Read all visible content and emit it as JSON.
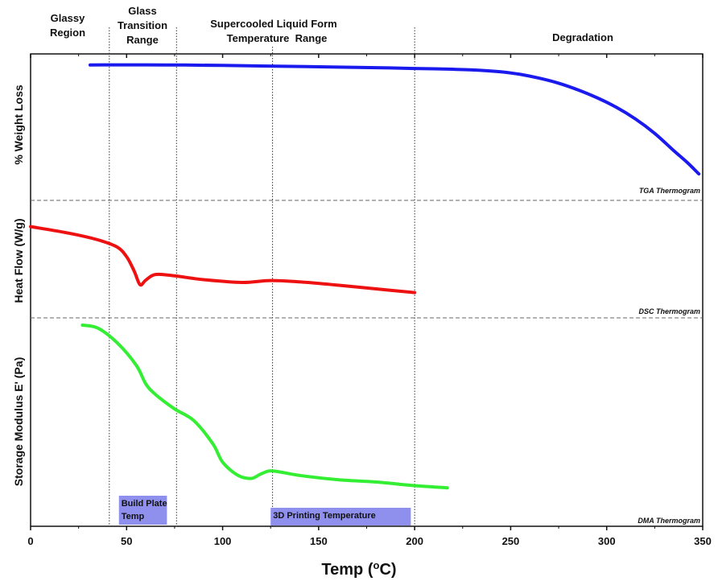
{
  "chart_data": {
    "type": "line",
    "x_axis": {
      "label_main": "Temp (",
      "label_sup": "o",
      "label_end": "C)",
      "range": [
        0,
        350
      ],
      "ticks": [
        "0",
        "50",
        "100",
        "150",
        "200",
        "250",
        "300",
        "350"
      ],
      "tick_values": [
        0,
        50,
        100,
        150,
        200,
        250,
        300,
        350
      ]
    },
    "regions": [
      {
        "lines": [
          "Glassy",
          "Region"
        ]
      },
      {
        "lines": [
          "Glass",
          "Transition",
          "Range"
        ]
      },
      {
        "lines": [
          "Supercooled Liquid Form",
          "Temperature  Range"
        ]
      },
      {
        "lines": [
          "Degradation"
        ]
      }
    ],
    "region_boundaries": [
      41,
      76,
      200
    ],
    "extra_divider": 126,
    "panels": [
      {
        "ylabel": "% Weight Loss",
        "caption": "TGA Thermogram",
        "color": "#1a1aee",
        "series": {
          "x": [
            31,
            40,
            60,
            80,
            100,
            120,
            140,
            160,
            180,
            200,
            215,
            230,
            245,
            255,
            265,
            275,
            285,
            295,
            305,
            315,
            325,
            335,
            342,
            348
          ],
          "y": [
            98.9,
            99,
            99,
            98.9,
            98.6,
            98.2,
            97.8,
            97.3,
            96.9,
            96.3,
            95.9,
            95.2,
            93.7,
            91.8,
            88.9,
            85.1,
            80.1,
            74.1,
            66.9,
            58,
            47.1,
            33.9,
            25,
            16.4
          ]
        }
      },
      {
        "ylabel": "Heat Flow (W/g)",
        "caption": "DSC Thermogram",
        "color": "#ee1111",
        "series": {
          "x": [
            0,
            20,
            35,
            45,
            50,
            54,
            57,
            60,
            65,
            75,
            90,
            110,
            125,
            140,
            160,
            180,
            200
          ],
          "y": [
            90,
            80.5,
            70.9,
            60.6,
            46.5,
            25.5,
            6,
            12.7,
            20.8,
            18.8,
            13.4,
            9.3,
            12.1,
            10.2,
            5.4,
            0,
            -5.4
          ]
        }
      },
      {
        "ylabel": "Storage Modulus E' (Pa)",
        "caption": "DMA Thermogram",
        "color": "#33ee33",
        "series": {
          "x": [
            27,
            35,
            45,
            55,
            60,
            65,
            75,
            85,
            95,
            100,
            108,
            115,
            120,
            126,
            140,
            160,
            180,
            200,
            217
          ],
          "y": [
            99.5,
            97.7,
            88.9,
            75.2,
            63.9,
            57.5,
            48.7,
            41.6,
            27.4,
            16.4,
            8.4,
            6.6,
            9.3,
            11.1,
            8.4,
            5.8,
            4.4,
            2.2,
            0.9
          ]
        }
      }
    ],
    "annotations": [
      {
        "lines": [
          "Build Plate",
          "Temp"
        ],
        "x_range": [
          46,
          71
        ],
        "color": "#8f8fee"
      },
      {
        "lines": [
          "3D Printing Temperature"
        ],
        "x_range": [
          125,
          198
        ],
        "color": "#8f8fee"
      }
    ]
  }
}
